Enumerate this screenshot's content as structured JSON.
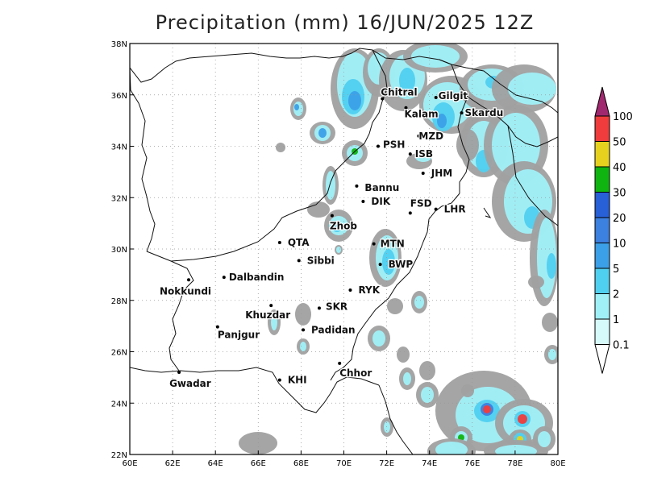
{
  "title": "Precipitation (mm) 16/JUN/2025 12Z",
  "map": {
    "lon_range": [
      60,
      80
    ],
    "lat_range": [
      22,
      38
    ],
    "x_ticks": [
      {
        "v": 60,
        "label": "60E"
      },
      {
        "v": 62,
        "label": "62E"
      },
      {
        "v": 64,
        "label": "64E"
      },
      {
        "v": 66,
        "label": "66E"
      },
      {
        "v": 68,
        "label": "68E"
      },
      {
        "v": 70,
        "label": "70E"
      },
      {
        "v": 72,
        "label": "72E"
      },
      {
        "v": 74,
        "label": "74E"
      },
      {
        "v": 76,
        "label": "76E"
      },
      {
        "v": 78,
        "label": "78E"
      },
      {
        "v": 80,
        "label": "80E"
      }
    ],
    "y_ticks": [
      {
        "v": 22,
        "label": "22N"
      },
      {
        "v": 24,
        "label": "24N"
      },
      {
        "v": 26,
        "label": "26N"
      },
      {
        "v": 28,
        "label": "28N"
      },
      {
        "v": 30,
        "label": "30N"
      },
      {
        "v": 32,
        "label": "32N"
      },
      {
        "v": 34,
        "label": "34N"
      },
      {
        "v": 36,
        "label": "36N"
      },
      {
        "v": 38,
        "label": "38N"
      }
    ],
    "grid": "dotted"
  },
  "cities": [
    {
      "name": "Chitral",
      "lon": 71.8,
      "lat": 35.85,
      "dx": -2,
      "dy": -4
    },
    {
      "name": "Gilgit",
      "lon": 74.3,
      "lat": 35.9,
      "dx": 3,
      "dy": 2
    },
    {
      "name": "Kalam",
      "lon": 72.9,
      "lat": 35.5,
      "dx": -2,
      "dy": 12
    },
    {
      "name": "Skardu",
      "lon": 75.5,
      "lat": 35.3,
      "dx": 4,
      "dy": 4
    },
    {
      "name": "MZD",
      "lon": 73.5,
      "lat": 34.4,
      "dx": 0,
      "dy": 4
    },
    {
      "name": "PSH",
      "lon": 71.6,
      "lat": 34.0,
      "dx": 6,
      "dy": 2
    },
    {
      "name": "ISB",
      "lon": 73.1,
      "lat": 33.7,
      "dx": 6,
      "dy": 4
    },
    {
      "name": "JHM",
      "lon": 73.7,
      "lat": 32.95,
      "dx": 10,
      "dy": 4
    },
    {
      "name": "Bannu",
      "lon": 70.6,
      "lat": 32.45,
      "dx": 10,
      "dy": 6
    },
    {
      "name": "DIK",
      "lon": 70.9,
      "lat": 31.85,
      "dx": 10,
      "dy": 4
    },
    {
      "name": "FSD",
      "lon": 73.1,
      "lat": 31.4,
      "dx": 0,
      "dy": -8
    },
    {
      "name": "LHR",
      "lon": 74.3,
      "lat": 31.55,
      "dx": 10,
      "dy": 4
    },
    {
      "name": "Zhob",
      "lon": 69.45,
      "lat": 31.3,
      "dx": -3,
      "dy": 17
    },
    {
      "name": "QTA",
      "lon": 67.0,
      "lat": 30.25,
      "dx": 10,
      "dy": 4
    },
    {
      "name": "MTN",
      "lon": 71.4,
      "lat": 30.2,
      "dx": 8,
      "dy": 4
    },
    {
      "name": "Sibbi",
      "lon": 67.9,
      "lat": 29.55,
      "dx": 10,
      "dy": 4
    },
    {
      "name": "BWP",
      "lon": 71.7,
      "lat": 29.4,
      "dx": 10,
      "dy": 4
    },
    {
      "name": "Dalbandin",
      "lon": 64.4,
      "lat": 28.9,
      "dx": 6,
      "dy": 4
    },
    {
      "name": "Nokkundi",
      "lon": 62.75,
      "lat": 28.8,
      "dx": -36,
      "dy": 18
    },
    {
      "name": "RYK",
      "lon": 70.3,
      "lat": 28.4,
      "dx": 10,
      "dy": 4
    },
    {
      "name": "SKR",
      "lon": 68.85,
      "lat": 27.7,
      "dx": 8,
      "dy": 2
    },
    {
      "name": "Khuzdar",
      "lon": 66.6,
      "lat": 27.8,
      "dx": -32,
      "dy": 16
    },
    {
      "name": "Padidan",
      "lon": 68.1,
      "lat": 26.85,
      "dx": 10,
      "dy": 4
    },
    {
      "name": "Panjgur",
      "lon": 64.1,
      "lat": 26.97,
      "dx": 0,
      "dy": 14
    },
    {
      "name": "Chhor",
      "lon": 69.8,
      "lat": 25.55,
      "dx": 0,
      "dy": 16
    },
    {
      "name": "KHI",
      "lon": 67.0,
      "lat": 24.9,
      "dx": 10,
      "dy": 4
    },
    {
      "name": "Gwadar",
      "lon": 62.3,
      "lat": 25.2,
      "dx": -12,
      "dy": 18
    }
  ],
  "colorbar": {
    "labels": [
      "0.1",
      "1",
      "2",
      "5",
      "10",
      "20",
      "30",
      "40",
      "50",
      "100"
    ],
    "colors": [
      "#a0a0a0",
      "#d6fafa",
      "#a0f0f8",
      "#50d0f0",
      "#3ca0e8",
      "#3c80e0",
      "#2860d8",
      "#10b410",
      "#e6d21e",
      "#f03c3c",
      "#a0286e"
    ]
  }
}
